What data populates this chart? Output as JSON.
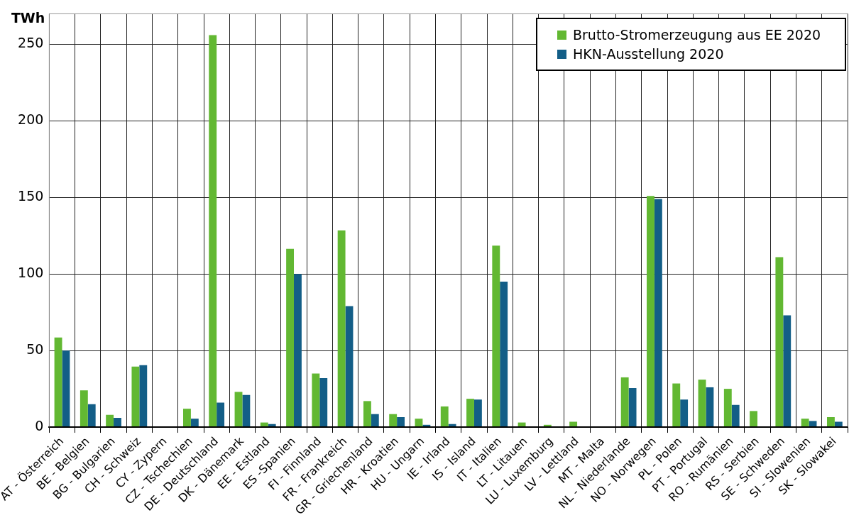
{
  "chart_data": {
    "type": "bar",
    "ylabel": "TWh",
    "categories": [
      "AT - Österreich",
      "BE - Belgien",
      "BG - Bulgarien",
      "CH - Schweiz",
      "CY - Zypern",
      "CZ - Tschechien",
      "DE - Deutschland",
      "DK - Dänemark",
      "EE - Estland",
      "ES -Spanien",
      "FI - Finnland",
      "FR - Frankreich",
      "GR - Griechenland",
      "HR - Kroatien",
      "HU - Ungarn",
      "IE - Irland",
      "IS - Island",
      "IT - Italien",
      "LT - Litauen",
      "LU - Luxemburg",
      "LV - Lettland",
      "MT - Malta",
      "NL - Niederlande",
      "NO - Norwegen",
      "PL - Polen",
      "PT - Portugal",
      "RO - Rumänien",
      "RS - Serbien",
      "SE - Schweden",
      "SI - Slowenien",
      "SK - Slowakei"
    ],
    "series": [
      {
        "name": "Brutto-Stromerzeugung aus EE 2020",
        "color": "#62b832",
        "values": [
          58.5,
          24,
          8,
          39.5,
          0,
          12,
          256,
          23,
          3,
          116.5,
          35,
          128.5,
          17,
          8.5,
          5.5,
          13.5,
          18.5,
          118.5,
          3,
          1.5,
          3.5,
          0,
          32.5,
          151,
          28.5,
          31,
          25,
          10.5,
          111,
          5.5,
          6.5
        ]
      },
      {
        "name": "HKN-Ausstellung 2020",
        "color": "#135e87",
        "values": [
          50,
          15,
          6,
          40.5,
          0,
          5.5,
          16,
          21,
          2,
          100,
          32,
          79,
          8.5,
          6.5,
          1.5,
          2,
          18,
          95,
          0,
          0,
          0,
          0,
          25.5,
          149,
          18,
          26,
          14.5,
          0,
          73,
          4,
          3.5
        ]
      }
    ],
    "ylim": [
      0,
      270
    ],
    "yticks": [
      0,
      50,
      100,
      150,
      200,
      250
    ],
    "grid": true,
    "legend": "top right"
  }
}
